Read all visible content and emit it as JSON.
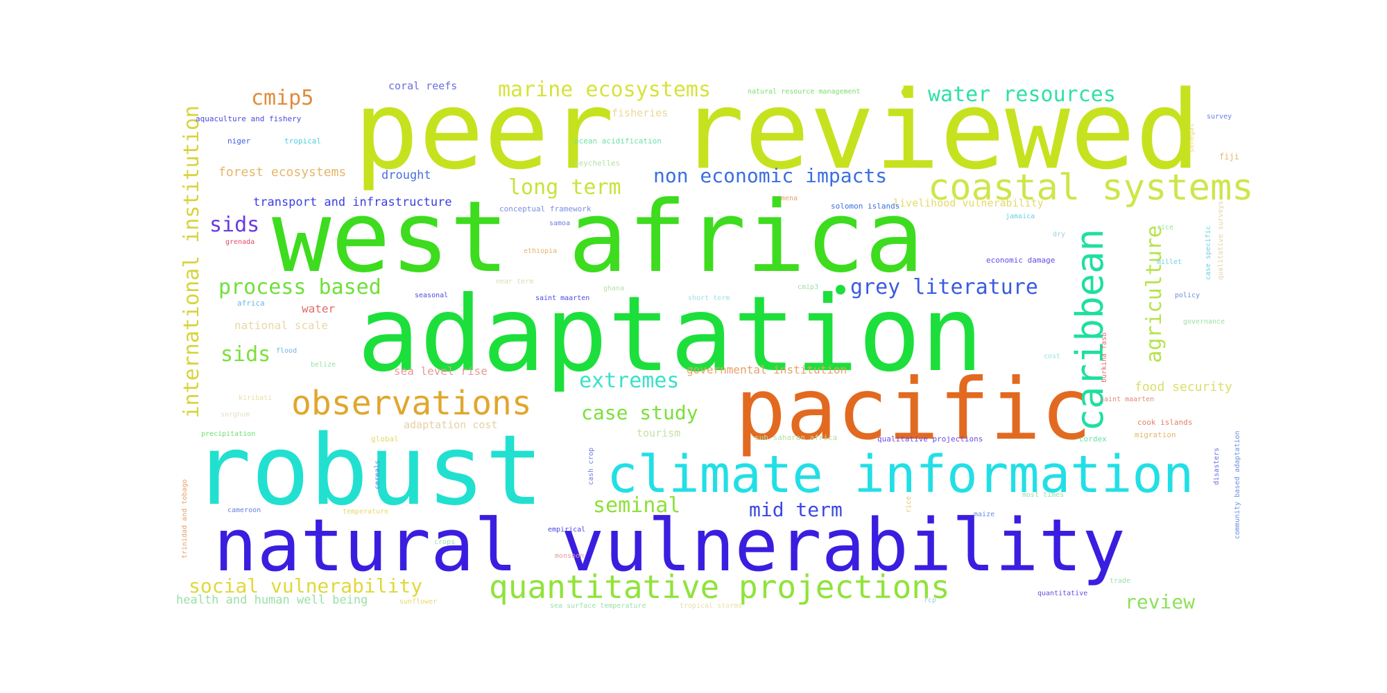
{
  "words": [
    {
      "text": "peer reviewed",
      "color": "#c6e21f"
    },
    {
      "text": "west africa",
      "color": "#3ddc1e"
    },
    {
      "text": "adaptation",
      "color": "#1ddf3c"
    },
    {
      "text": "robust",
      "color": "#21e0d0"
    },
    {
      "text": "natural vulnerability",
      "color": "#3a1ee0"
    },
    {
      "text": "pacific",
      "color": "#e26a20"
    },
    {
      "text": "climate information",
      "color": "#22dfe6"
    },
    {
      "text": "coastal systems",
      "color": "#cde64a"
    },
    {
      "text": "caribbean",
      "color": "#1fdfa0"
    },
    {
      "text": "observations",
      "color": "#e0a72c"
    },
    {
      "text": "quantitative projections",
      "color": "#8fe33a"
    },
    {
      "text": "international institution",
      "color": "#d8d33c"
    },
    {
      "text": "marine ecosystems",
      "color": "#d6e33a"
    },
    {
      "text": "water resources",
      "color": "#2ee0a6"
    },
    {
      "text": "cmip5",
      "color": "#e08b3a"
    },
    {
      "text": "long term",
      "color": "#c6e33a"
    },
    {
      "text": "non economic impacts",
      "color": "#3a6ee0"
    },
    {
      "text": "grey literature",
      "color": "#3a5be0"
    },
    {
      "text": "process based",
      "color": "#6fe03a"
    },
    {
      "text": "agriculture",
      "color": "#b6e34a"
    },
    {
      "text": "sids",
      "color": "#6a3ae0"
    },
    {
      "text": "sids",
      "color": "#7ae03a"
    },
    {
      "text": "extremes",
      "color": "#3ae0c8"
    },
    {
      "text": "case study",
      "color": "#7ae03a"
    },
    {
      "text": "seminal",
      "color": "#8ee03a"
    },
    {
      "text": "mid term",
      "color": "#3a4ae0"
    },
    {
      "text": "social vulnerability",
      "color": "#e0d83a"
    },
    {
      "text": "review",
      "color": "#8ee05a"
    },
    {
      "text": "food security",
      "color": "#d8e06a"
    },
    {
      "text": "forest ecosystems",
      "color": "#e6b66a"
    },
    {
      "text": "transport and infrastructure",
      "color": "#3a3ee0"
    },
    {
      "text": "drought",
      "color": "#4a6ee0"
    },
    {
      "text": "coral reefs",
      "color": "#6a6ee0"
    },
    {
      "text": "fisheries",
      "color": "#e8d89a"
    },
    {
      "text": "aquaculture and fishery",
      "color": "#4a4ae0"
    },
    {
      "text": "niger",
      "color": "#3a5ee0"
    },
    {
      "text": "tropical",
      "color": "#4ad0e0"
    },
    {
      "text": "ocean acidification",
      "color": "#6ee0a6"
    },
    {
      "text": "seychelles",
      "color": "#b6e0a6"
    },
    {
      "text": "natural resource management",
      "color": "#7ae06a"
    },
    {
      "text": "livelihood vulnerability",
      "color": "#e6d86a"
    },
    {
      "text": "solomon islands",
      "color": "#3a6ee0"
    },
    {
      "text": "conceptual framework",
      "color": "#7a8ee0"
    },
    {
      "text": "samoa",
      "color": "#6a7ee0"
    },
    {
      "text": "ethiopia",
      "color": "#e0b66a"
    },
    {
      "text": "grenada",
      "color": "#e04a6a"
    },
    {
      "text": "national scale",
      "color": "#e6d8a6"
    },
    {
      "text": "water",
      "color": "#e06a6a"
    },
    {
      "text": "africa",
      "color": "#6ab6e0"
    },
    {
      "text": "seasonal",
      "color": "#4a4ae0"
    },
    {
      "text": "saint maarten",
      "color": "#4a4ae0"
    },
    {
      "text": "short term",
      "color": "#9ee0e6"
    },
    {
      "text": "ghana",
      "color": "#b6e0a6"
    },
    {
      "text": "near term",
      "color": "#d6e0b6"
    },
    {
      "text": "sea level rise",
      "color": "#e69a9a"
    },
    {
      "text": "governmental institution",
      "color": "#e6a06a"
    },
    {
      "text": "flood",
      "color": "#6ab6e0"
    },
    {
      "text": "belize",
      "color": "#9ae0a6"
    },
    {
      "text": "kiribati",
      "color": "#e6e0a6"
    },
    {
      "text": "sorghum",
      "color": "#e6e0c6"
    },
    {
      "text": "precipitation",
      "color": "#6ae06a"
    },
    {
      "text": "adaptation cost",
      "color": "#e6d0a6"
    },
    {
      "text": "tourism",
      "color": "#c6e0a6"
    },
    {
      "text": "global",
      "color": "#e6d86a"
    },
    {
      "text": "sub saharan africa",
      "color": "#b6e0a6"
    },
    {
      "text": "qualitative projections",
      "color": "#6a4ae0"
    },
    {
      "text": "cordex",
      "color": "#6ae0a6"
    },
    {
      "text": "migration",
      "color": "#e6b66a"
    },
    {
      "text": "cook islands",
      "color": "#e0806a"
    },
    {
      "text": "saint maarten",
      "color": "#e08a7a"
    },
    {
      "text": "economic damage",
      "color": "#6a4ae0"
    },
    {
      "text": "cmip3",
      "color": "#9ae0a6"
    },
    {
      "text": "jamaica",
      "color": "#6ad0e0"
    },
    {
      "text": "fiji",
      "color": "#e6b66a"
    },
    {
      "text": "survey",
      "color": "#6a7ee0"
    },
    {
      "text": "millet",
      "color": "#6ad0e0"
    },
    {
      "text": "policy",
      "color": "#6a8ee0"
    },
    {
      "text": "governance",
      "color": "#9ae0a6"
    },
    {
      "text": "cost",
      "color": "#9ae0e6"
    },
    {
      "text": "senegal",
      "color": "#e6d86a"
    },
    {
      "text": "qualitative surveys",
      "color": "#e6d0a6"
    },
    {
      "text": "case specific",
      "color": "#6ad0e0"
    },
    {
      "text": "burkina faso",
      "color": "#e06a6a"
    },
    {
      "text": "disasters",
      "color": "#6a6ee0"
    },
    {
      "text": "community based adaptation",
      "color": "#6a8ee0"
    },
    {
      "text": "trinidad and tobago",
      "color": "#e6a06a"
    },
    {
      "text": "cereals",
      "color": "#6a7ee0"
    },
    {
      "text": "cash crop",
      "color": "#6a7ee0"
    },
    {
      "text": "cameroon",
      "color": "#6a7ee0"
    },
    {
      "text": "temperature",
      "color": "#e6d86a"
    },
    {
      "text": "empirical",
      "color": "#4a4ae0"
    },
    {
      "text": "monsoon",
      "color": "#e69a9a"
    },
    {
      "text": "sea surface temperature",
      "color": "#9ae0a6"
    },
    {
      "text": "tropical storms",
      "color": "#e6e0a6"
    },
    {
      "text": "crops",
      "color": "#9ae0a6"
    },
    {
      "text": "health and human well being",
      "color": "#9ae0a6"
    },
    {
      "text": "sunflower",
      "color": "#e6d86a"
    },
    {
      "text": "maize",
      "color": "#6a8ee0"
    },
    {
      "text": "rice",
      "color": "#e6c66a"
    },
    {
      "text": "most times",
      "color": "#9ae0a6"
    },
    {
      "text": "trade",
      "color": "#9ae0a6"
    },
    {
      "text": "quantitative",
      "color": "#6a4ae0"
    },
    {
      "text": "rcp",
      "color": "#9ad0e0"
    },
    {
      "text": "mena",
      "color": "#e6a06a"
    },
    {
      "text": "dry",
      "color": "#9ad0e0"
    },
    {
      "text": "rice",
      "color": "#9ae0a6"
    }
  ]
}
